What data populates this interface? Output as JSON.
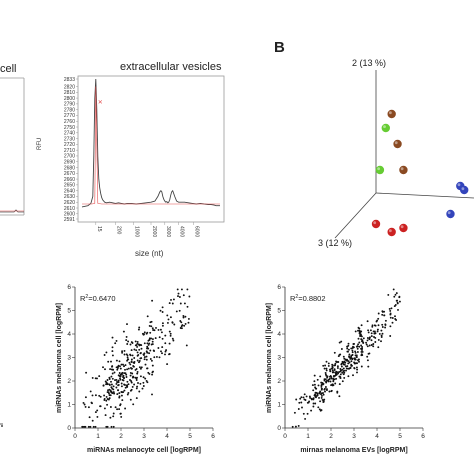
{
  "labels": {
    "cell_partial": "cell",
    "ev_title": "extracellular vesicles",
    "panel_b": "B",
    "pc2": "2 (13 %)",
    "pc3": "3 (12 %)"
  },
  "chart_data": [
    {
      "type": "line",
      "panel": "extracellular vesicles electropherogram",
      "title": "extracellular vesicles",
      "xlabel": "size (nt)",
      "ylabel": "RFU",
      "x_ticks": [
        "15",
        "200",
        "1000",
        "2000",
        "3000",
        "4000",
        "6000"
      ],
      "y_ticks": [
        2591,
        2600,
        2610,
        2620,
        2630,
        2640,
        2650,
        2660,
        2670,
        2680,
        2690,
        2700,
        2710,
        2720,
        2730,
        2740,
        2750,
        2760,
        2770,
        2780,
        2790,
        2800,
        2810,
        2820,
        2833
      ],
      "ylim": [
        2591,
        2833
      ],
      "series": [
        {
          "color": "#444444",
          "x": [
            0,
            3,
            6,
            9,
            11,
            12,
            13,
            14,
            15,
            16,
            17,
            18,
            19,
            20,
            21,
            23,
            25,
            28,
            31,
            34,
            37,
            40,
            43,
            46,
            50,
            55,
            60,
            65,
            70,
            74,
            77,
            79,
            80,
            81,
            82,
            83,
            84,
            85,
            86,
            87,
            88,
            89,
            90,
            91,
            92,
            93,
            94,
            96,
            98,
            100,
            104,
            108,
            112,
            116,
            120,
            124,
            128,
            131,
            134,
            136,
            140
          ],
          "y": [
            2612,
            2613,
            2614,
            2618,
            2630,
            2700,
            2800,
            2833,
            2780,
            2700,
            2660,
            2645,
            2635,
            2628,
            2624,
            2620,
            2619,
            2620,
            2619,
            2618,
            2619,
            2618,
            2617,
            2618,
            2618,
            2617,
            2618,
            2619,
            2620,
            2622,
            2630,
            2638,
            2640,
            2638,
            2630,
            2625,
            2622,
            2620,
            2621,
            2619,
            2620,
            2624,
            2632,
            2638,
            2640,
            2635,
            2630,
            2622,
            2620,
            2620,
            2620,
            2619,
            2618,
            2617,
            2618,
            2617,
            2616,
            2616,
            2615,
            2614,
            2614
          ]
        },
        {
          "color": "#e34a4a",
          "x": [
            0,
            10,
            13,
            14,
            16,
            20,
            40,
            80,
            100,
            140
          ],
          "y": [
            2617,
            2617,
            2618,
            2820,
            2618,
            2617,
            2617,
            2617,
            2617,
            2617
          ]
        }
      ]
    },
    {
      "type": "scatter",
      "panel": "B",
      "axes": [
        "2 (13 %)",
        "3 (12 %)"
      ],
      "groups": [
        {
          "color": "#8a4a22",
          "points": [
            [
              0.58,
              0.27
            ],
            [
              0.61,
              0.42
            ],
            [
              0.64,
              0.55
            ]
          ]
        },
        {
          "color": "#66cc33",
          "points": [
            [
              0.55,
              0.34
            ],
            [
              0.52,
              0.55
            ]
          ]
        },
        {
          "color": "#cc2222",
          "points": [
            [
              0.5,
              0.82
            ],
            [
              0.58,
              0.86
            ],
            [
              0.64,
              0.84
            ]
          ]
        },
        {
          "color": "#3344bb",
          "points": [
            [
              0.93,
              0.63
            ],
            [
              0.95,
              0.65
            ],
            [
              0.88,
              0.77
            ]
          ]
        }
      ]
    },
    {
      "type": "scatter",
      "panel": "melanocyte vs melanoma",
      "annotation": "R",
      "annotation_sup": "2",
      "annotation_value": "=0.6470",
      "xlabel": "miRNAs melanocyte cell [logRPM]",
      "ylabel": "miRNAs melanoma cell [logRPM]",
      "x_ticks": [
        "0",
        "1",
        "2",
        "3",
        "4",
        "5",
        "6"
      ],
      "y_ticks": [
        "0",
        "1",
        "2",
        "3",
        "4",
        "5",
        "6"
      ],
      "xlim": [
        0,
        6
      ],
      "ylim": [
        0,
        6
      ],
      "r2": 0.647,
      "n_points": 420
    },
    {
      "type": "scatter",
      "panel": "melanoma EVs vs melanoma cell",
      "annotation": "R",
      "annotation_sup": "2",
      "annotation_value": "=0.8802",
      "xlabel": "mirnas melanoma EVs [logRPM]",
      "ylabel": "miRNAs melanoma cell [logRPM]",
      "x_ticks": [
        "0",
        "1",
        "2",
        "3",
        "4",
        "5",
        "6"
      ],
      "y_ticks": [
        "0",
        "1",
        "2",
        "3",
        "4",
        "5",
        "6"
      ],
      "xlim": [
        0,
        6
      ],
      "ylim": [
        0,
        6
      ],
      "r2": 0.8802,
      "n_points": 420
    }
  ]
}
